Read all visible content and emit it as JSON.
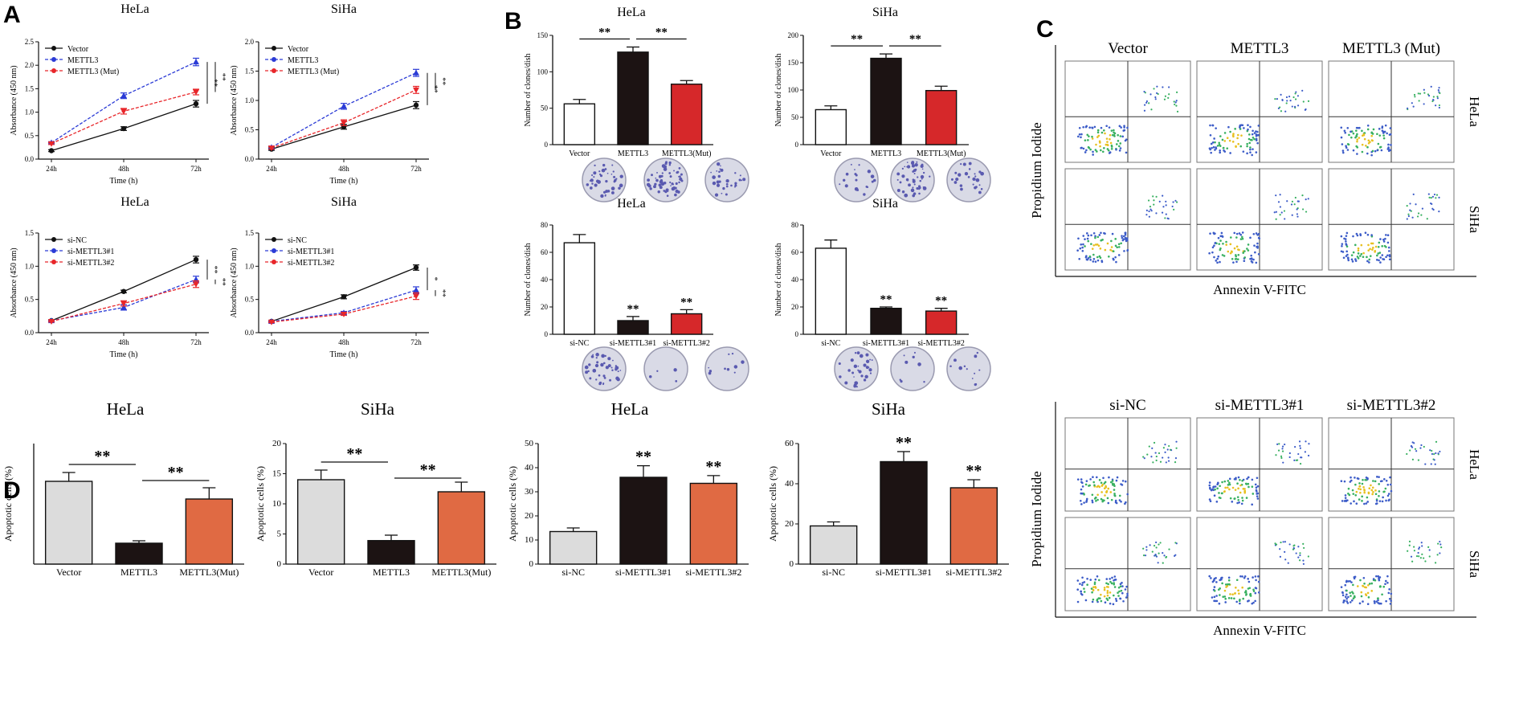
{
  "panels": {
    "a": "A",
    "b": "B",
    "c": "C",
    "d": "D"
  },
  "chart_data": [
    {
      "id": "A1",
      "type": "line",
      "title": "HeLa",
      "xlabel": "Time (h)",
      "ylabel": "Absorbance (450 nm)",
      "categories": [
        "24h",
        "48h",
        "72h"
      ],
      "ylim": [
        0,
        2.5
      ],
      "yticks": [
        "0.0",
        "0.5",
        "1.0",
        "1.5",
        "2.0",
        "2.5"
      ],
      "series": [
        {
          "name": "Vector",
          "color": "#111111",
          "values": [
            0.18,
            0.65,
            1.18
          ],
          "errors": [
            0.02,
            0.04,
            0.07
          ]
        },
        {
          "name": "METTL3",
          "color": "#2b3bd6",
          "values": [
            0.35,
            1.35,
            2.07
          ],
          "errors": [
            0.02,
            0.06,
            0.08
          ]
        },
        {
          "name": "METTL3 (Mut)",
          "color": "#e8262a",
          "values": [
            0.33,
            1.02,
            1.43
          ],
          "errors": [
            0.02,
            0.06,
            0.06
          ]
        }
      ],
      "significance": [
        "**",
        "**"
      ],
      "legend": "top-left"
    },
    {
      "id": "A2",
      "type": "line",
      "title": "SiHa",
      "xlabel": "Time (h)",
      "ylabel": "Absorbance (450 nm)",
      "categories": [
        "24h",
        "48h",
        "72h"
      ],
      "ylim": [
        0,
        2.0
      ],
      "yticks": [
        "0.0",
        "0.5",
        "1.0",
        "1.5",
        "2.0"
      ],
      "series": [
        {
          "name": "Vector",
          "color": "#111111",
          "values": [
            0.17,
            0.55,
            0.92
          ],
          "errors": [
            0.02,
            0.04,
            0.06
          ]
        },
        {
          "name": "METTL3",
          "color": "#2b3bd6",
          "values": [
            0.2,
            0.9,
            1.47
          ],
          "errors": [
            0.02,
            0.05,
            0.06
          ]
        },
        {
          "name": "METTL3 (Mut)",
          "color": "#e8262a",
          "values": [
            0.19,
            0.62,
            1.18
          ],
          "errors": [
            0.02,
            0.05,
            0.06
          ]
        }
      ],
      "significance": [
        "**",
        "**"
      ],
      "legend": "top-left"
    },
    {
      "id": "A3",
      "type": "line",
      "title": "HeLa",
      "xlabel": "Time (h)",
      "ylabel": "Absorbance (450 nm)",
      "categories": [
        "24h",
        "48h",
        "72h"
      ],
      "ylim": [
        0,
        1.5
      ],
      "yticks": [
        "0.0",
        "0.5",
        "1.0",
        "1.5"
      ],
      "series": [
        {
          "name": "si-NC",
          "color": "#111111",
          "values": [
            0.18,
            0.62,
            1.1
          ],
          "errors": [
            0.01,
            0.02,
            0.05
          ]
        },
        {
          "name": "si-METTL3#1",
          "color": "#2b3bd6",
          "values": [
            0.18,
            0.38,
            0.8
          ],
          "errors": [
            0.01,
            0.04,
            0.05
          ]
        },
        {
          "name": "si-METTL3#2",
          "color": "#e8262a",
          "values": [
            0.17,
            0.44,
            0.73
          ],
          "errors": [
            0.01,
            0.04,
            0.05
          ]
        }
      ],
      "significance": [
        "**",
        "**"
      ],
      "legend": "top-left"
    },
    {
      "id": "A4",
      "type": "line",
      "title": "SiHa",
      "xlabel": "Time (h)",
      "ylabel": "Absorbance (450 nm)",
      "categories": [
        "24h",
        "48h",
        "72h"
      ],
      "ylim": [
        0,
        1.5
      ],
      "yticks": [
        "0.0",
        "0.5",
        "1.0",
        "1.5"
      ],
      "series": [
        {
          "name": "si-NC",
          "color": "#111111",
          "values": [
            0.17,
            0.54,
            0.98
          ],
          "errors": [
            0.01,
            0.03,
            0.04
          ]
        },
        {
          "name": "si-METTL3#1",
          "color": "#2b3bd6",
          "values": [
            0.17,
            0.3,
            0.64
          ],
          "errors": [
            0.01,
            0.02,
            0.05
          ]
        },
        {
          "name": "si-METTL3#2",
          "color": "#e8262a",
          "values": [
            0.16,
            0.28,
            0.55
          ],
          "errors": [
            0.01,
            0.02,
            0.05
          ]
        }
      ],
      "significance": [
        "*",
        "**"
      ],
      "legend": "top-left"
    },
    {
      "id": "B1",
      "type": "bar",
      "title": "HeLa",
      "ylabel": "Number of clones/dish",
      "categories": [
        "Vector",
        "METTL3",
        "METTL3(Mut)"
      ],
      "ylim": [
        0,
        150
      ],
      "yticks": [
        "0",
        "50",
        "100",
        "150"
      ],
      "values": [
        56,
        127,
        83
      ],
      "errors": [
        6,
        7,
        5
      ],
      "colors": [
        "#ffffff",
        "#1c1313",
        "#d6282a"
      ],
      "brackets": [
        {
          "from": 0,
          "to": 1,
          "label": "**"
        },
        {
          "from": 1,
          "to": 2,
          "label": "**"
        }
      ],
      "stars": []
    },
    {
      "id": "B2",
      "type": "bar",
      "title": "SiHa",
      "ylabel": "Number of clones/dish",
      "categories": [
        "Vector",
        "METTL3",
        "METTL3(Mut)"
      ],
      "ylim": [
        0,
        200
      ],
      "yticks": [
        "0",
        "50",
        "100",
        "150",
        "200"
      ],
      "values": [
        64,
        158,
        99
      ],
      "errors": [
        7,
        8,
        8
      ],
      "colors": [
        "#ffffff",
        "#1c1313",
        "#d6282a"
      ],
      "brackets": [
        {
          "from": 0,
          "to": 1,
          "label": "**"
        },
        {
          "from": 1,
          "to": 2,
          "label": "**"
        }
      ],
      "stars": []
    },
    {
      "id": "B3",
      "type": "bar",
      "title": "HeLa",
      "ylabel": "Number of clones/dish",
      "categories": [
        "si-NC",
        "si-METTL3#1",
        "si-METTL3#2"
      ],
      "ylim": [
        0,
        80
      ],
      "yticks": [
        "0",
        "20",
        "40",
        "60",
        "80"
      ],
      "values": [
        67,
        10,
        15
      ],
      "errors": [
        6,
        3,
        3
      ],
      "colors": [
        "#ffffff",
        "#1c1313",
        "#d6282a"
      ],
      "brackets": [],
      "stars": [
        "",
        "**",
        "**"
      ]
    },
    {
      "id": "B4",
      "type": "bar",
      "title": "SiHa",
      "ylabel": "Number of clones/dish",
      "categories": [
        "si-NC",
        "si-METTL3#1",
        "si-METTL3#2"
      ],
      "ylim": [
        0,
        80
      ],
      "yticks": [
        "0",
        "20",
        "40",
        "60",
        "80"
      ],
      "values": [
        63,
        19,
        17
      ],
      "errors": [
        6,
        1,
        2
      ],
      "colors": [
        "#ffffff",
        "#1c1313",
        "#d6282a"
      ],
      "brackets": [],
      "stars": [
        "",
        "**",
        "**"
      ]
    },
    {
      "id": "D1",
      "type": "bar",
      "title": "HeLa",
      "ylabel": "Apoptotic cells (%)",
      "categories": [
        "Vector",
        "METTL3",
        "METTL3(Mut)"
      ],
      "ylim": [
        0,
        15
      ],
      "yticks": [],
      "values": [
        10.3,
        2.6,
        8.1
      ],
      "errors": [
        1.1,
        0.3,
        1.4
      ],
      "colors": [
        "#dcdcdc",
        "#1c1313",
        "#e06a43"
      ],
      "brackets": [
        {
          "from": 0,
          "to": 1,
          "label": "**"
        },
        {
          "from": 1,
          "to": 2,
          "label": "**"
        }
      ],
      "stars": []
    },
    {
      "id": "D2",
      "type": "bar",
      "title": "SiHa",
      "ylabel": "Apoptotic cells (%)",
      "categories": [
        "Vector",
        "METTL3",
        "METTL3(Mut)"
      ],
      "ylim": [
        0,
        20
      ],
      "yticks": [
        "0",
        "5",
        "10",
        "15",
        "20"
      ],
      "values": [
        14,
        3.9,
        12
      ],
      "errors": [
        1.6,
        0.9,
        1.6
      ],
      "colors": [
        "#dcdcdc",
        "#1c1313",
        "#e06a43"
      ],
      "brackets": [
        {
          "from": 0,
          "to": 1,
          "label": "**"
        },
        {
          "from": 1,
          "to": 2,
          "label": "**"
        }
      ],
      "stars": []
    },
    {
      "id": "D3",
      "type": "bar",
      "title": "HeLa",
      "ylabel": "Apoptotic cells (%)",
      "categories": [
        "si-NC",
        "si-METTL3#1",
        "si-METTL3#2"
      ],
      "ylim": [
        0,
        50
      ],
      "yticks": [
        "0",
        "10",
        "20",
        "30",
        "40",
        "50"
      ],
      "values": [
        13.5,
        36,
        33.5
      ],
      "errors": [
        1.5,
        4.8,
        3.2
      ],
      "colors": [
        "#dcdcdc",
        "#1c1313",
        "#e06a43"
      ],
      "brackets": [],
      "stars": [
        "",
        "**",
        "**"
      ]
    },
    {
      "id": "D4",
      "type": "bar",
      "title": "SiHa",
      "ylabel": "Apoptotic cells (%)",
      "categories": [
        "si-NC",
        "si-METTL3#1",
        "si-METTL3#2"
      ],
      "ylim": [
        0,
        60
      ],
      "yticks": [
        "0",
        "20",
        "40",
        "60"
      ],
      "values": [
        19,
        51,
        38
      ],
      "errors": [
        2,
        5,
        4
      ],
      "colors": [
        "#dcdcdc",
        "#1c1313",
        "#e06a43"
      ],
      "brackets": [],
      "stars": [
        "",
        "**",
        "**"
      ]
    }
  ],
  "flow_top": {
    "columns": [
      "Vector",
      "METTL3",
      "METTL3 (Mut)"
    ],
    "rows": [
      "HeLa",
      "SiHa"
    ],
    "ylabel": "Propidium Iodide",
    "xlabel": "Annexin V-FITC"
  },
  "flow_bottom": {
    "columns": [
      "si-NC",
      "si-METTL3#1",
      "si-METTL3#2"
    ],
    "rows": [
      "HeLa",
      "SiHa"
    ],
    "ylabel": "Propidium Iodide",
    "xlabel": "Annexin V-FITC"
  },
  "colony_dishes": {
    "style": "crystal-violet stained wells",
    "color": "#5a5ab0"
  }
}
